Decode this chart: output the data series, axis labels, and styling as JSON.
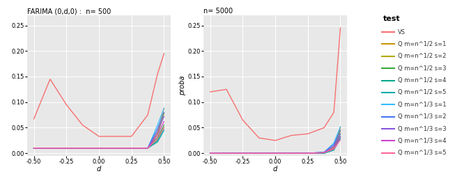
{
  "title_left": "FARIMA (0,d,0) :  n= 500",
  "title_right": "n= 5000",
  "xlabel": "d",
  "ylabel": "proba",
  "d_values": [
    -0.5,
    -0.375,
    -0.25,
    -0.125,
    0.0,
    0.125,
    0.25,
    0.375,
    0.45,
    0.5
  ],
  "VS_n500": [
    0.067,
    0.145,
    0.095,
    0.055,
    0.033,
    0.033,
    0.033,
    0.075,
    0.155,
    0.195
  ],
  "VS_n5000": [
    0.12,
    0.125,
    0.065,
    0.03,
    0.025,
    0.035,
    0.038,
    0.05,
    0.08,
    0.245
  ],
  "Q_lines_n500": [
    [
      0.01,
      0.01,
      0.01,
      0.01,
      0.01,
      0.01,
      0.01,
      0.01,
      0.04,
      0.088
    ],
    [
      0.01,
      0.01,
      0.01,
      0.01,
      0.01,
      0.01,
      0.01,
      0.01,
      0.035,
      0.078
    ],
    [
      0.01,
      0.01,
      0.01,
      0.01,
      0.01,
      0.01,
      0.01,
      0.01,
      0.03,
      0.055
    ],
    [
      0.01,
      0.01,
      0.01,
      0.01,
      0.01,
      0.01,
      0.01,
      0.01,
      0.025,
      0.05
    ],
    [
      0.01,
      0.01,
      0.01,
      0.01,
      0.01,
      0.01,
      0.01,
      0.01,
      0.022,
      0.045
    ],
    [
      0.01,
      0.01,
      0.01,
      0.01,
      0.01,
      0.01,
      0.01,
      0.01,
      0.055,
      0.088
    ],
    [
      0.01,
      0.01,
      0.01,
      0.01,
      0.01,
      0.01,
      0.01,
      0.01,
      0.048,
      0.08
    ],
    [
      0.01,
      0.01,
      0.01,
      0.01,
      0.01,
      0.01,
      0.01,
      0.01,
      0.042,
      0.072
    ],
    [
      0.01,
      0.01,
      0.01,
      0.01,
      0.01,
      0.01,
      0.01,
      0.01,
      0.035,
      0.062
    ],
    [
      0.01,
      0.01,
      0.01,
      0.01,
      0.01,
      0.01,
      0.01,
      0.01,
      0.028,
      0.05
    ]
  ],
  "Q_lines_n5000": [
    [
      0.0,
      0.0,
      0.0,
      0.0,
      0.0,
      0.0,
      0.0,
      0.0,
      0.012,
      0.05
    ],
    [
      0.0,
      0.0,
      0.0,
      0.0,
      0.0,
      0.0,
      0.0,
      0.0,
      0.01,
      0.043
    ],
    [
      0.0,
      0.0,
      0.0,
      0.0,
      0.0,
      0.0,
      0.0,
      0.0,
      0.008,
      0.038
    ],
    [
      0.0,
      0.0,
      0.0,
      0.0,
      0.0,
      0.0,
      0.0,
      0.0,
      0.007,
      0.033
    ],
    [
      0.0,
      0.0,
      0.0,
      0.0,
      0.0,
      0.0,
      0.0,
      0.0,
      0.006,
      0.029
    ],
    [
      0.0,
      0.0,
      0.0,
      0.0,
      0.0,
      0.0,
      0.0,
      0.002,
      0.02,
      0.052
    ],
    [
      0.0,
      0.0,
      0.0,
      0.0,
      0.0,
      0.0,
      0.0,
      0.002,
      0.017,
      0.045
    ],
    [
      0.0,
      0.0,
      0.0,
      0.0,
      0.0,
      0.0,
      0.0,
      0.002,
      0.014,
      0.038
    ],
    [
      0.0,
      0.0,
      0.0,
      0.0,
      0.0,
      0.0,
      0.0,
      0.001,
      0.01,
      0.032
    ],
    [
      0.0,
      0.0,
      0.0,
      0.0,
      0.0,
      0.0,
      0.0,
      0.001,
      0.008,
      0.026
    ]
  ],
  "VS_color": "#f87070",
  "line_colors": [
    "#c8960c",
    "#b5a800",
    "#3aaa3a",
    "#00aa88",
    "#00aaaa",
    "#33bbff",
    "#4477ee",
    "#8855dd",
    "#cc44cc",
    "#ff6699"
  ],
  "bg_color": "#e8e8e8",
  "legend_labels": [
    "VS",
    "Q m=n^1/2 s=1",
    "Q m=n^1/2 s=2",
    "Q m=n^1/2 s=3",
    "Q m=n^1/2 s=4",
    "Q m=n^1/2 s=5",
    "Q m=n^1/3 s=1",
    "Q m=n^1/3 s=2",
    "Q m=n^1/3 s=3",
    "Q m=n^1/3 s=4",
    "Q m=n^1/3 s=5"
  ],
  "ylim": [
    -0.005,
    0.27
  ],
  "xlim": [
    -0.55,
    0.55
  ],
  "yticks": [
    0.0,
    0.05,
    0.1,
    0.15,
    0.2,
    0.25
  ],
  "xticks": [
    -0.5,
    -0.25,
    0.0,
    0.25,
    0.5
  ],
  "title_fontsize": 7,
  "label_fontsize": 7,
  "tick_fontsize": 6,
  "legend_title_fontsize": 8,
  "legend_text_fontsize": 6
}
